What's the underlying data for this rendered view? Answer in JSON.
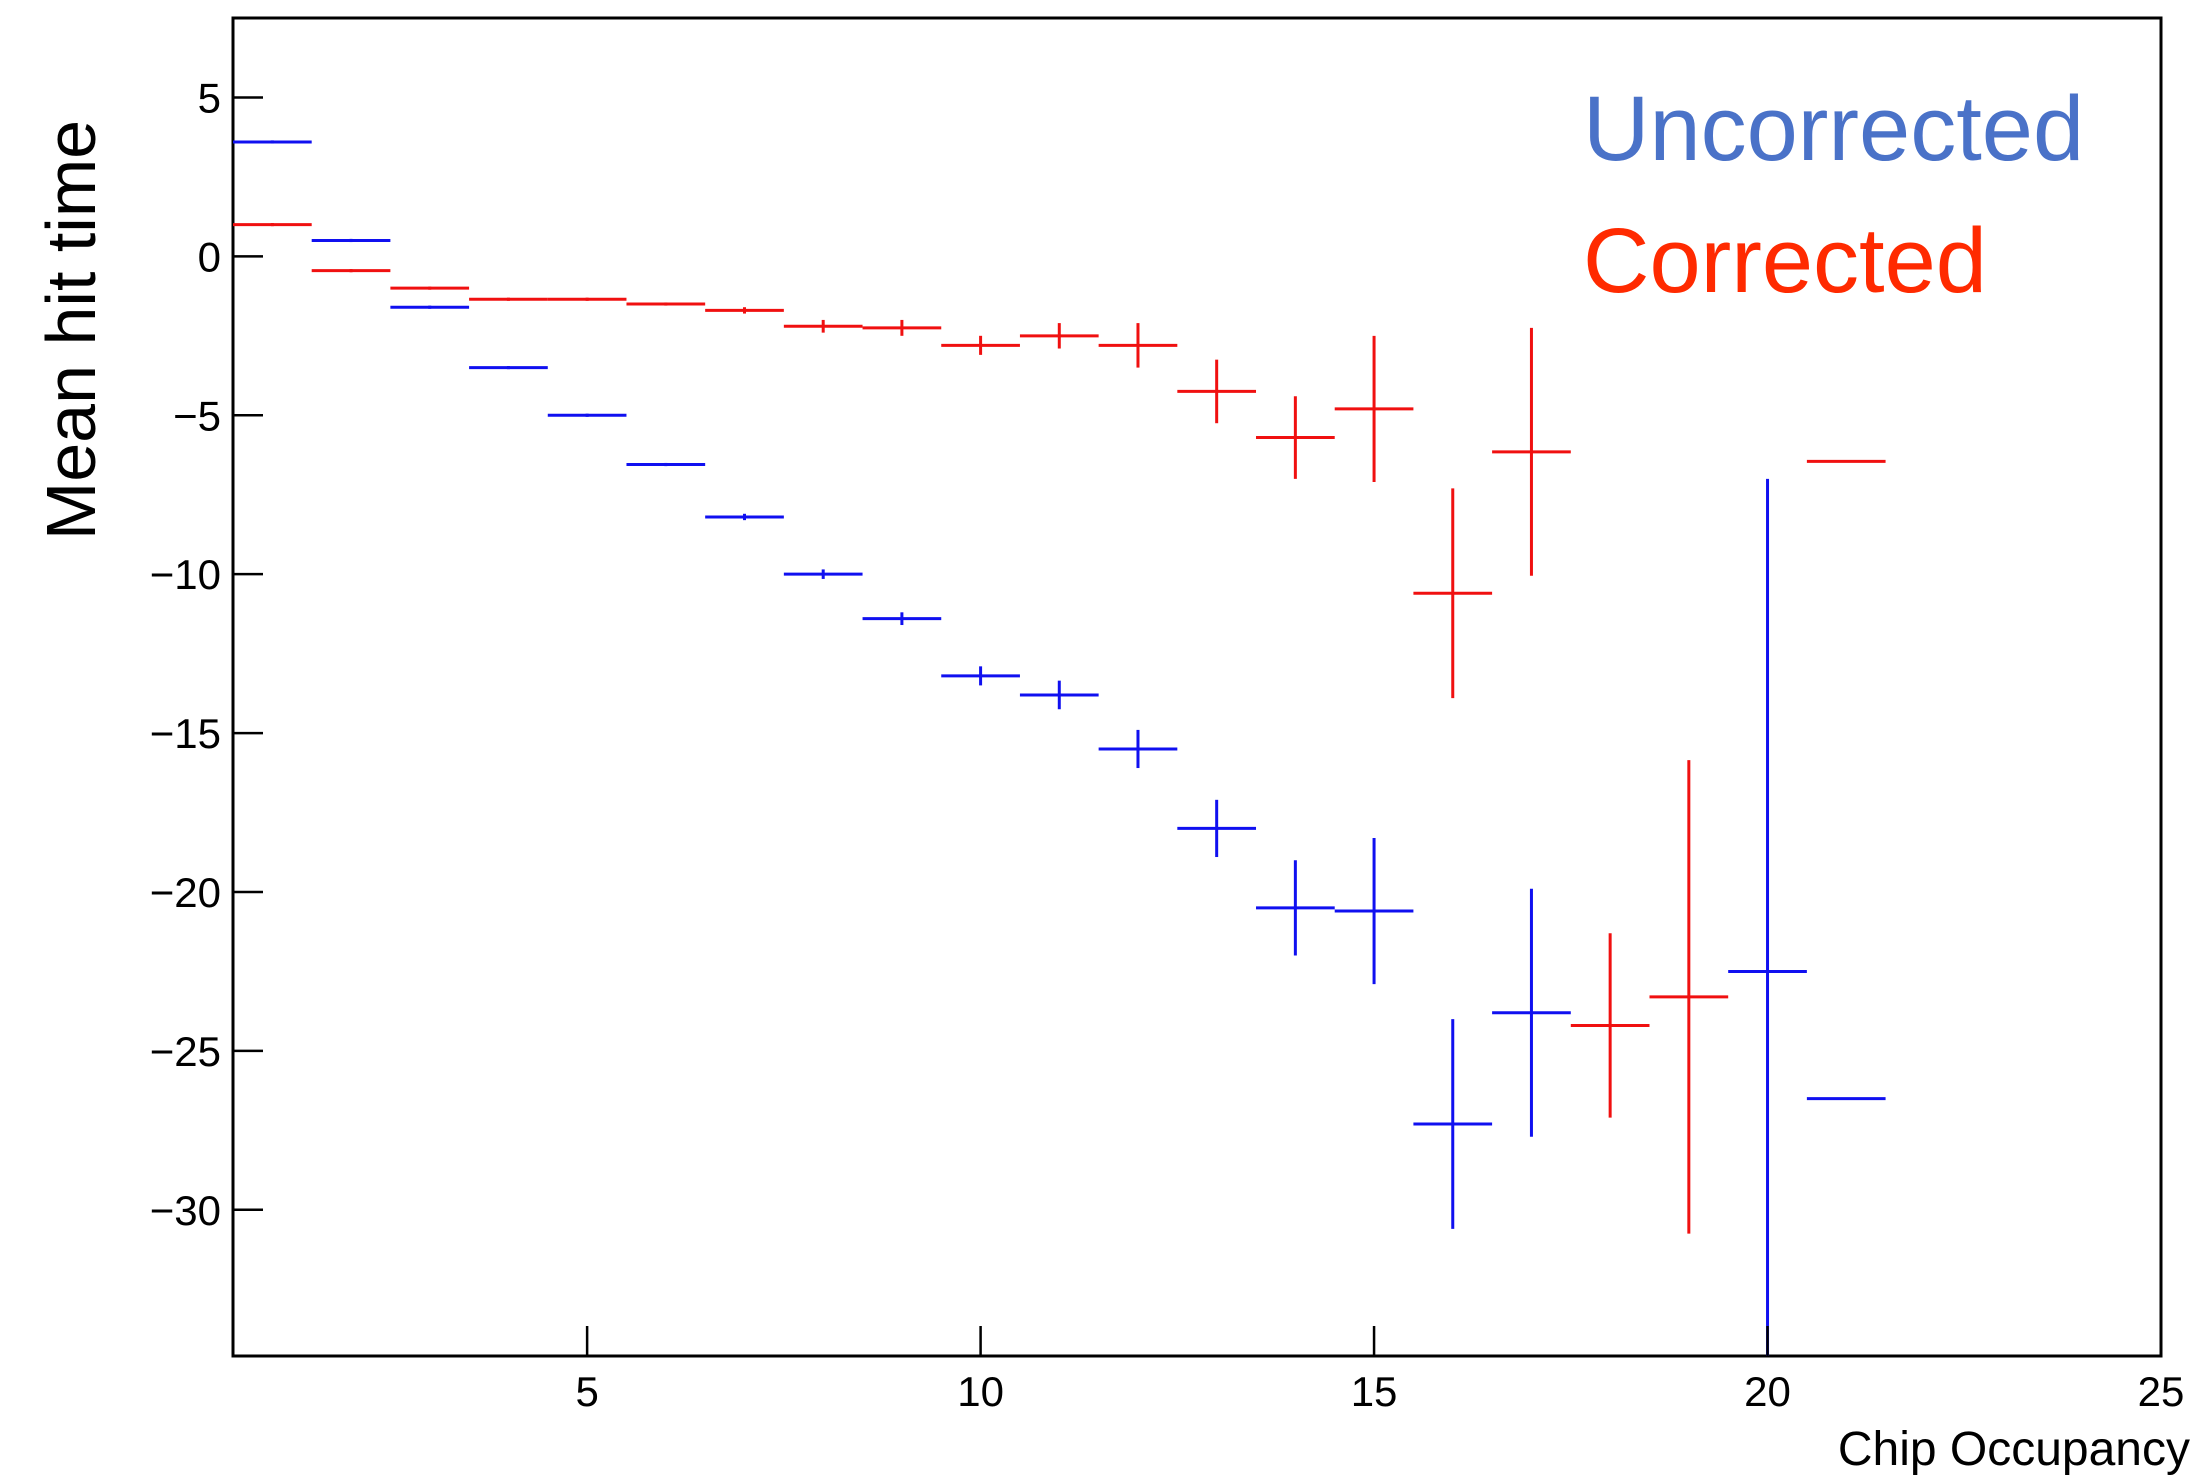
{
  "chart_data": {
    "type": "errorbar",
    "x_label": "Chip Occupancy",
    "y_label": "Mean hit time",
    "x": [
      1,
      2,
      3,
      4,
      5,
      6,
      7,
      8,
      9,
      10,
      11,
      12,
      13,
      14,
      15,
      16,
      17,
      18,
      19,
      20,
      21
    ],
    "xerr": 0.5,
    "series": [
      {
        "name": "Uncorrected",
        "color": "#1010f0",
        "label_color": "#4a72c8",
        "values": [
          3.6,
          0.5,
          -1.6,
          -3.5,
          -5.0,
          -6.55,
          -8.2,
          -10.0,
          -11.4,
          -13.2,
          -13.8,
          -15.5,
          -18.0,
          -20.5,
          -20.6,
          -27.3,
          -23.8,
          null,
          null,
          -22.5,
          -26.5
        ],
        "errors": [
          0.05,
          0.05,
          0.05,
          0.05,
          0.05,
          0.05,
          0.1,
          0.15,
          0.2,
          0.3,
          0.45,
          0.6,
          0.9,
          1.5,
          2.3,
          3.3,
          3.9,
          null,
          null,
          15.5,
          0
        ]
      },
      {
        "name": "Corrected",
        "color": "#f01010",
        "label_color": "#ff2a00",
        "values": [
          1.0,
          -0.45,
          -1.0,
          -1.35,
          -1.35,
          -1.5,
          -1.7,
          -2.2,
          -2.25,
          -2.8,
          -2.5,
          -2.8,
          -4.25,
          -5.7,
          -4.8,
          -10.6,
          -6.15,
          -24.2,
          -23.3,
          null,
          -6.45
        ],
        "errors": [
          0.05,
          0.05,
          0.05,
          0.05,
          0.05,
          0.05,
          0.1,
          0.2,
          0.25,
          0.3,
          0.4,
          0.7,
          1.0,
          1.3,
          2.3,
          3.3,
          3.9,
          2.9,
          7.45,
          null,
          0
        ]
      }
    ],
    "xlim": [
      0.5,
      25
    ],
    "ylim": [
      -34.6,
      7.5
    ],
    "xticks": [
      5,
      10,
      15,
      20,
      25
    ],
    "yticks": [
      {
        "value": -30,
        "label": "−30"
      },
      {
        "value": -25,
        "label": "−25"
      },
      {
        "value": -20,
        "label": "−20"
      },
      {
        "value": -15,
        "label": "−15"
      },
      {
        "value": -10,
        "label": "−10"
      },
      {
        "value": -5,
        "label": "−5"
      },
      0,
      5
    ],
    "grid": false
  }
}
